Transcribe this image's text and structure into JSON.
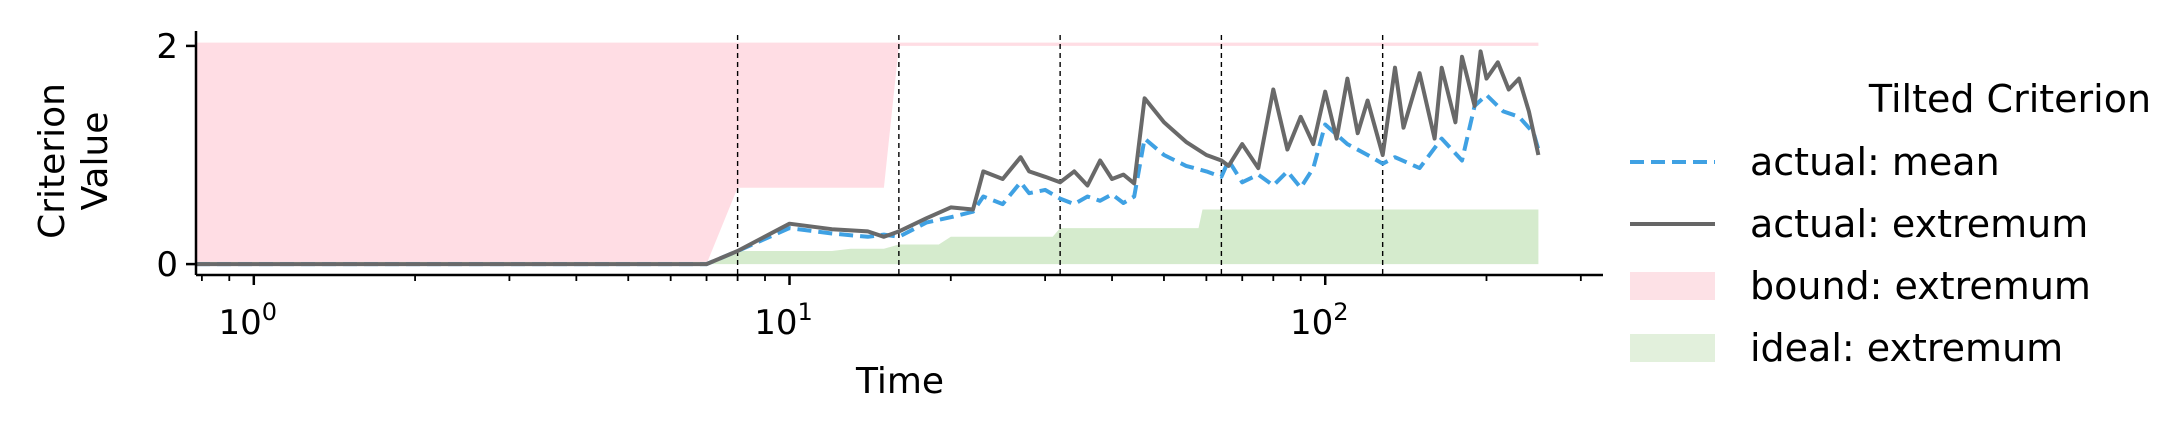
{
  "chart_data": {
    "type": "line",
    "xlabel": "Time",
    "ylabel_lines": [
      "Criterion",
      "Value"
    ],
    "xscale": "log",
    "xlim": [
      0.78,
      330
    ],
    "ylim": [
      -0.1,
      2.1
    ],
    "x_ticks": [
      {
        "value": 1,
        "base": "10",
        "exp": "0"
      },
      {
        "value": 10,
        "base": "10",
        "exp": "1"
      },
      {
        "value": 100,
        "base": "10",
        "exp": "2"
      }
    ],
    "y_ticks": [
      {
        "value": 0,
        "label": "0"
      },
      {
        "value": 2,
        "label": "2"
      }
    ],
    "vlines": [
      8,
      16,
      32,
      64,
      128
    ],
    "grid": false,
    "legend_position": "right",
    "legend": {
      "title": "Tilted Criterion",
      "entries": [
        {
          "label": "actual: mean",
          "style": "dashed-line",
          "color": "#3fa1e3"
        },
        {
          "label": "actual: extremum",
          "style": "solid-line",
          "color": "#666666"
        },
        {
          "label": "bound: extremum",
          "style": "patch",
          "color": "#fde1e6"
        },
        {
          "label": "ideal: extremum",
          "style": "patch",
          "color": "#e2f0dc"
        }
      ]
    },
    "series": [
      {
        "name": "bound: extremum",
        "kind": "area",
        "color": "#ffdde4",
        "x": [
          0.78,
          7,
          8,
          15,
          16,
          250
        ],
        "upper": [
          2.03,
          2.03,
          2.03,
          2.03,
          2.03,
          2.03
        ],
        "lower": [
          0,
          0,
          0.7,
          0.7,
          2.0,
          2.0
        ]
      },
      {
        "name": "ideal: extremum",
        "kind": "area",
        "color": "#d5ebcd",
        "x": [
          0.78,
          7,
          8,
          12,
          13,
          15,
          16,
          19,
          20,
          31,
          32,
          58,
          59,
          250
        ],
        "upper": [
          0.02,
          0.02,
          0.12,
          0.12,
          0.14,
          0.14,
          0.18,
          0.18,
          0.25,
          0.25,
          0.33,
          0.33,
          0.5,
          0.5
        ],
        "lower": [
          0,
          0,
          0,
          0,
          0,
          0,
          0,
          0,
          0,
          0,
          0,
          0,
          0,
          0
        ]
      },
      {
        "name": "actual: mean",
        "kind": "line",
        "dash": true,
        "color": "#3fa1e3",
        "x": [
          0.78,
          7,
          8,
          10,
          12,
          14,
          15,
          16,
          18,
          20,
          22,
          23,
          25,
          27,
          28,
          30,
          32,
          34,
          36,
          38,
          40,
          42,
          44,
          46,
          50,
          55,
          60,
          64,
          66,
          70,
          75,
          80,
          85,
          90,
          95,
          100,
          110,
          120,
          128,
          135,
          150,
          165,
          180,
          190,
          200,
          215,
          230,
          245,
          250
        ],
        "y": [
          0,
          0,
          0.12,
          0.33,
          0.28,
          0.25,
          0.27,
          0.25,
          0.38,
          0.43,
          0.48,
          0.62,
          0.55,
          0.75,
          0.65,
          0.68,
          0.6,
          0.55,
          0.62,
          0.58,
          0.64,
          0.56,
          0.62,
          1.15,
          1.0,
          0.9,
          0.85,
          0.8,
          0.95,
          0.75,
          0.82,
          0.72,
          0.85,
          0.7,
          0.88,
          1.28,
          1.1,
          1.0,
          0.92,
          0.98,
          0.88,
          1.15,
          0.95,
          1.45,
          1.55,
          1.4,
          1.35,
          1.2,
          1.05
        ]
      },
      {
        "name": "actual: extremum",
        "kind": "line",
        "dash": false,
        "color": "#696969",
        "x": [
          0.78,
          7,
          8,
          10,
          12,
          14,
          15,
          16,
          18,
          20,
          22,
          23,
          25,
          27,
          28,
          30,
          32,
          34,
          36,
          38,
          40,
          42,
          44,
          46,
          50,
          55,
          60,
          64,
          66,
          70,
          75,
          80,
          85,
          90,
          95,
          100,
          105,
          110,
          115,
          120,
          128,
          135,
          140,
          150,
          160,
          165,
          175,
          180,
          190,
          195,
          200,
          210,
          220,
          230,
          240,
          250
        ],
        "y": [
          0,
          0,
          0.12,
          0.37,
          0.32,
          0.3,
          0.25,
          0.3,
          0.42,
          0.52,
          0.5,
          0.85,
          0.78,
          0.98,
          0.85,
          0.8,
          0.75,
          0.85,
          0.72,
          0.95,
          0.78,
          0.82,
          0.74,
          1.52,
          1.3,
          1.12,
          1.0,
          0.95,
          0.9,
          1.1,
          0.88,
          1.6,
          1.05,
          1.35,
          1.1,
          1.58,
          1.15,
          1.7,
          1.2,
          1.5,
          1.0,
          1.8,
          1.25,
          1.75,
          1.15,
          1.8,
          1.3,
          1.9,
          1.45,
          1.95,
          1.7,
          1.85,
          1.6,
          1.7,
          1.4,
          1.0
        ]
      }
    ]
  }
}
